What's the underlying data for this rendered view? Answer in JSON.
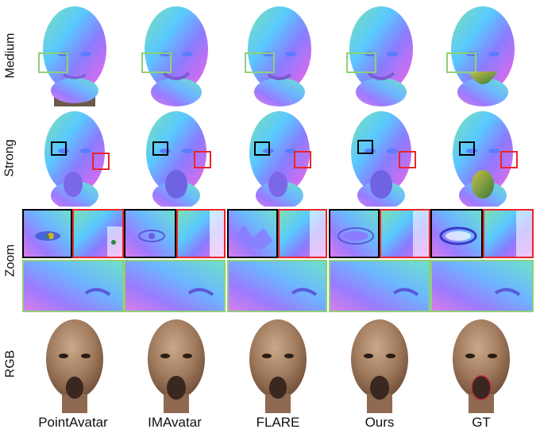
{
  "rows": [
    {
      "key": "medium",
      "label": "Medium"
    },
    {
      "key": "strong",
      "label": "Strong"
    },
    {
      "key": "zoom",
      "label": "Zoom"
    },
    {
      "key": "rgb",
      "label": "RGB"
    }
  ],
  "columns": [
    {
      "key": "pointavatar",
      "label": "PointAvatar"
    },
    {
      "key": "imavatar",
      "label": "IMAvatar"
    },
    {
      "key": "flare",
      "label": "FLARE"
    },
    {
      "key": "ours",
      "label": "Ours"
    },
    {
      "key": "gt",
      "label": "GT"
    }
  ],
  "colors": {
    "eye_box": "#000000",
    "cheek_box": "#e8262a",
    "mouth_box": "#8fd07a"
  }
}
